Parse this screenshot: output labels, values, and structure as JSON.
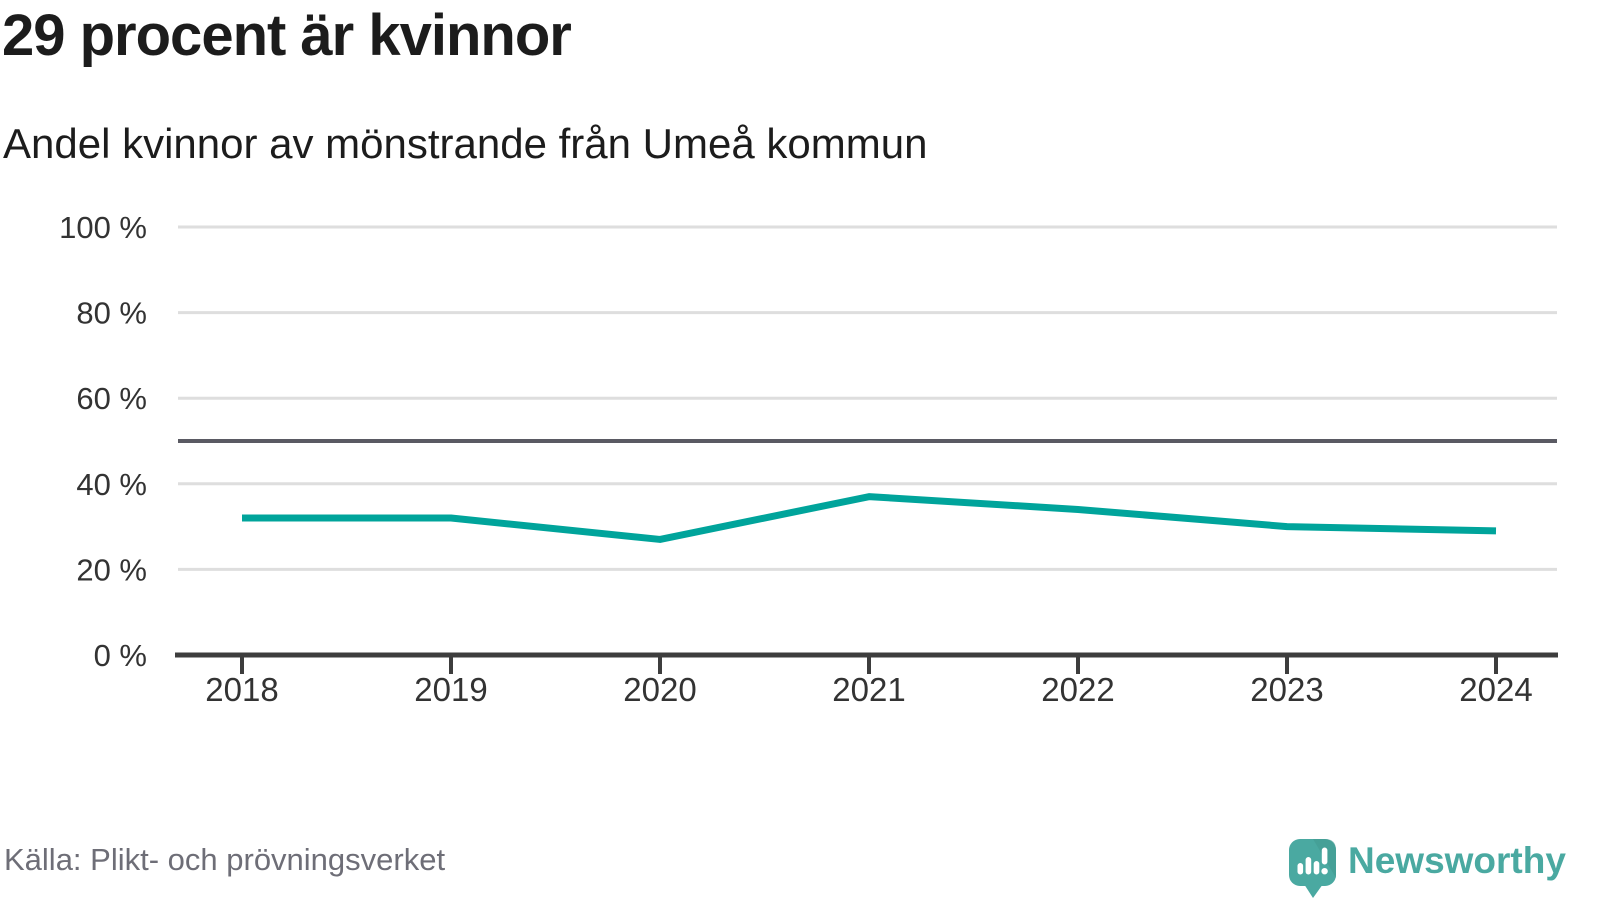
{
  "header": {
    "title": "29 procent är kvinnor",
    "subtitle": "Andel kvinnor av mönstrande från Umeå kommun"
  },
  "footer": {
    "source": "Källa: Plikt- och prövningsverket",
    "brand": "Newsworthy"
  },
  "colors": {
    "line": "#00a49b",
    "reference_line": "#5a5a63",
    "gridline": "#dedede",
    "axis": "#3d3d3d",
    "tick_text": "#333333",
    "title_text": "#1c1c1c",
    "source_text": "#6e6e77",
    "brand_teal": "#4aa9a1"
  },
  "chart_data": {
    "type": "line",
    "title": "29 procent är kvinnor",
    "subtitle": "Andel kvinnor av mönstrande från Umeå kommun",
    "source": "Källa: Plikt- och prövningsverket",
    "categories": [
      "2018",
      "2019",
      "2020",
      "2021",
      "2022",
      "2023",
      "2024"
    ],
    "series": [
      {
        "name": "Andel kvinnor av mönstrande",
        "values": [
          32,
          32,
          27,
          37,
          34,
          30,
          29
        ]
      }
    ],
    "unit": "%",
    "ylim": [
      0,
      100
    ],
    "yticks": [
      0,
      20,
      40,
      60,
      80,
      100
    ],
    "ytick_labels": [
      "0 %",
      "20 %",
      "40 %",
      "60 %",
      "80 %",
      "100 %"
    ],
    "reference_line_y": 50,
    "grid": "horizontal",
    "legend": "none"
  }
}
